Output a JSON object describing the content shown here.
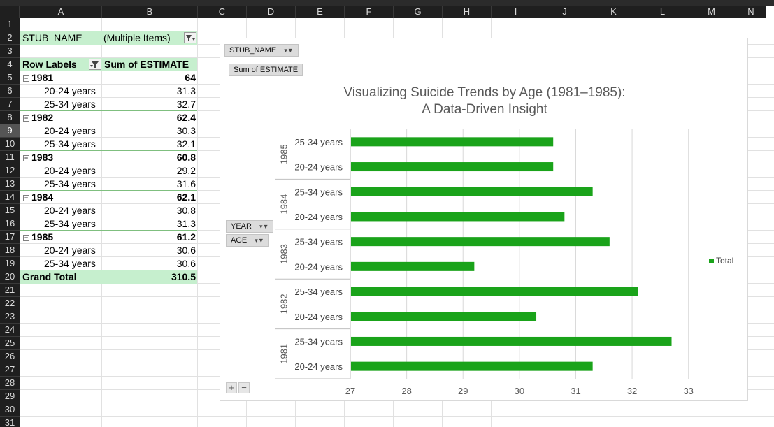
{
  "columns": [
    "A",
    "B",
    "C",
    "D",
    "E",
    "F",
    "G",
    "H",
    "I",
    "J",
    "K",
    "L",
    "M",
    "N"
  ],
  "rows": [
    "1",
    "2",
    "3",
    "4",
    "5",
    "6",
    "7",
    "8",
    "9",
    "10",
    "11",
    "12",
    "13",
    "14",
    "15",
    "16",
    "17",
    "18",
    "19",
    "20",
    "21",
    "22",
    "23",
    "24",
    "25",
    "26",
    "27",
    "28",
    "29",
    "30",
    "31"
  ],
  "selected_row": "9",
  "pivot": {
    "filter_label": "STUB_NAME",
    "filter_value": "(Multiple Items)",
    "row_labels_header": "Row Labels",
    "sum_header": "Sum of ESTIMATE",
    "groups": [
      {
        "year": "1981",
        "total": "64",
        "items": [
          {
            "label": "20-24 years",
            "value": "31.3"
          },
          {
            "label": "25-34 years",
            "value": "32.7"
          }
        ]
      },
      {
        "year": "1982",
        "total": "62.4",
        "items": [
          {
            "label": "20-24 years",
            "value": "30.3"
          },
          {
            "label": "25-34 years",
            "value": "32.1"
          }
        ]
      },
      {
        "year": "1983",
        "total": "60.8",
        "items": [
          {
            "label": "20-24 years",
            "value": "29.2"
          },
          {
            "label": "25-34 years",
            "value": "31.6"
          }
        ]
      },
      {
        "year": "1984",
        "total": "62.1",
        "items": [
          {
            "label": "20-24 years",
            "value": "30.8"
          },
          {
            "label": "25-34 years",
            "value": "31.3"
          }
        ]
      },
      {
        "year": "1985",
        "total": "61.2",
        "items": [
          {
            "label": "20-24 years",
            "value": "30.6"
          },
          {
            "label": "25-34 years",
            "value": "30.6"
          }
        ]
      }
    ],
    "grand_total_label": "Grand Total",
    "grand_total_value": "310.5"
  },
  "chart": {
    "field_buttons": {
      "stub_name": "STUB_NAME",
      "sum_estimate": "Sum of ESTIMATE",
      "year": "YEAR",
      "age": "AGE"
    },
    "title_line1": "Visualizing Suicide Trends by Age (1981–1985):",
    "title_line2": "A Data-Driven Insight",
    "legend_label": "Total",
    "zoom_in": "+",
    "zoom_out": "−"
  },
  "chart_data": {
    "type": "bar",
    "orientation": "horizontal",
    "groups": [
      {
        "year": "1985",
        "categories": [
          "25-34 years",
          "20-24 years"
        ],
        "values": [
          30.6,
          30.6
        ]
      },
      {
        "year": "1984",
        "categories": [
          "25-34 years",
          "20-24 years"
        ],
        "values": [
          31.3,
          30.8
        ]
      },
      {
        "year": "1983",
        "categories": [
          "25-34 years",
          "20-24 years"
        ],
        "values": [
          31.6,
          29.2
        ]
      },
      {
        "year": "1982",
        "categories": [
          "25-34 years",
          "20-24 years"
        ],
        "values": [
          32.1,
          30.3
        ]
      },
      {
        "year": "1981",
        "categories": [
          "25-34 years",
          "20-24 years"
        ],
        "values": [
          32.7,
          31.3
        ]
      }
    ],
    "series_name": "Total",
    "xlim": [
      27,
      33.5
    ],
    "xticks": [
      27,
      28,
      29,
      30,
      31,
      32,
      33
    ],
    "bar_color": "#1aa31a",
    "legend_position": "right",
    "grid": true
  }
}
